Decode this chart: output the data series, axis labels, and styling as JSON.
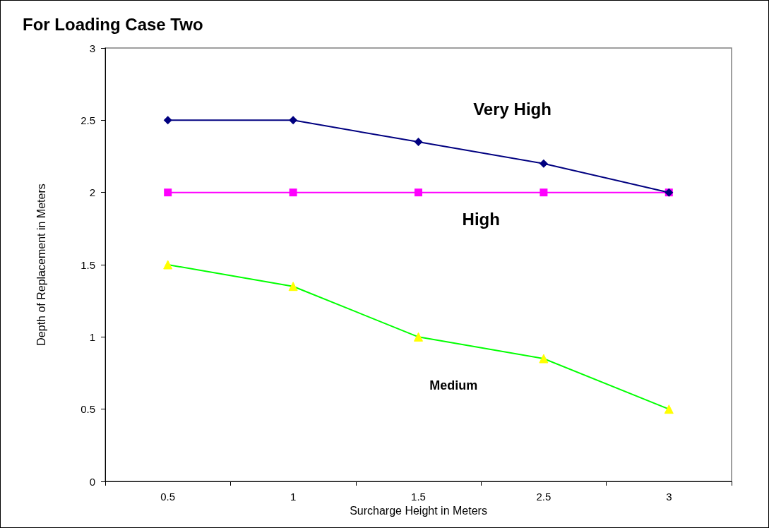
{
  "chart_data": {
    "type": "line",
    "title": "For Loading Case Two",
    "xlabel": "Surcharge Height in Meters",
    "ylabel": "Depth of Replacement in Meters",
    "categories": [
      "0.5",
      "1",
      "1.5",
      "2.5",
      "3"
    ],
    "series": [
      {
        "name": "Very High",
        "color": "#000080",
        "marker": "diamond",
        "values": [
          2.5,
          2.5,
          2.35,
          2.2,
          2.0
        ]
      },
      {
        "name": "High",
        "color": "#ff00ff",
        "marker": "square",
        "values": [
          2,
          2,
          2,
          2,
          2
        ]
      },
      {
        "name": "Medium",
        "color": "#00ff00",
        "colors": [
          "#ffff00",
          "#ffff00",
          "#ffff00",
          "#ffff00",
          "#ffff00"
        ],
        "marker": "triangle",
        "values": [
          1.5,
          1.35,
          1.0,
          0.85,
          0.5
        ]
      }
    ],
    "ylim": [
      0,
      3
    ],
    "yticks": [
      0,
      0.5,
      1,
      1.5,
      2,
      2.5,
      3
    ],
    "grid": false,
    "legend": false
  }
}
